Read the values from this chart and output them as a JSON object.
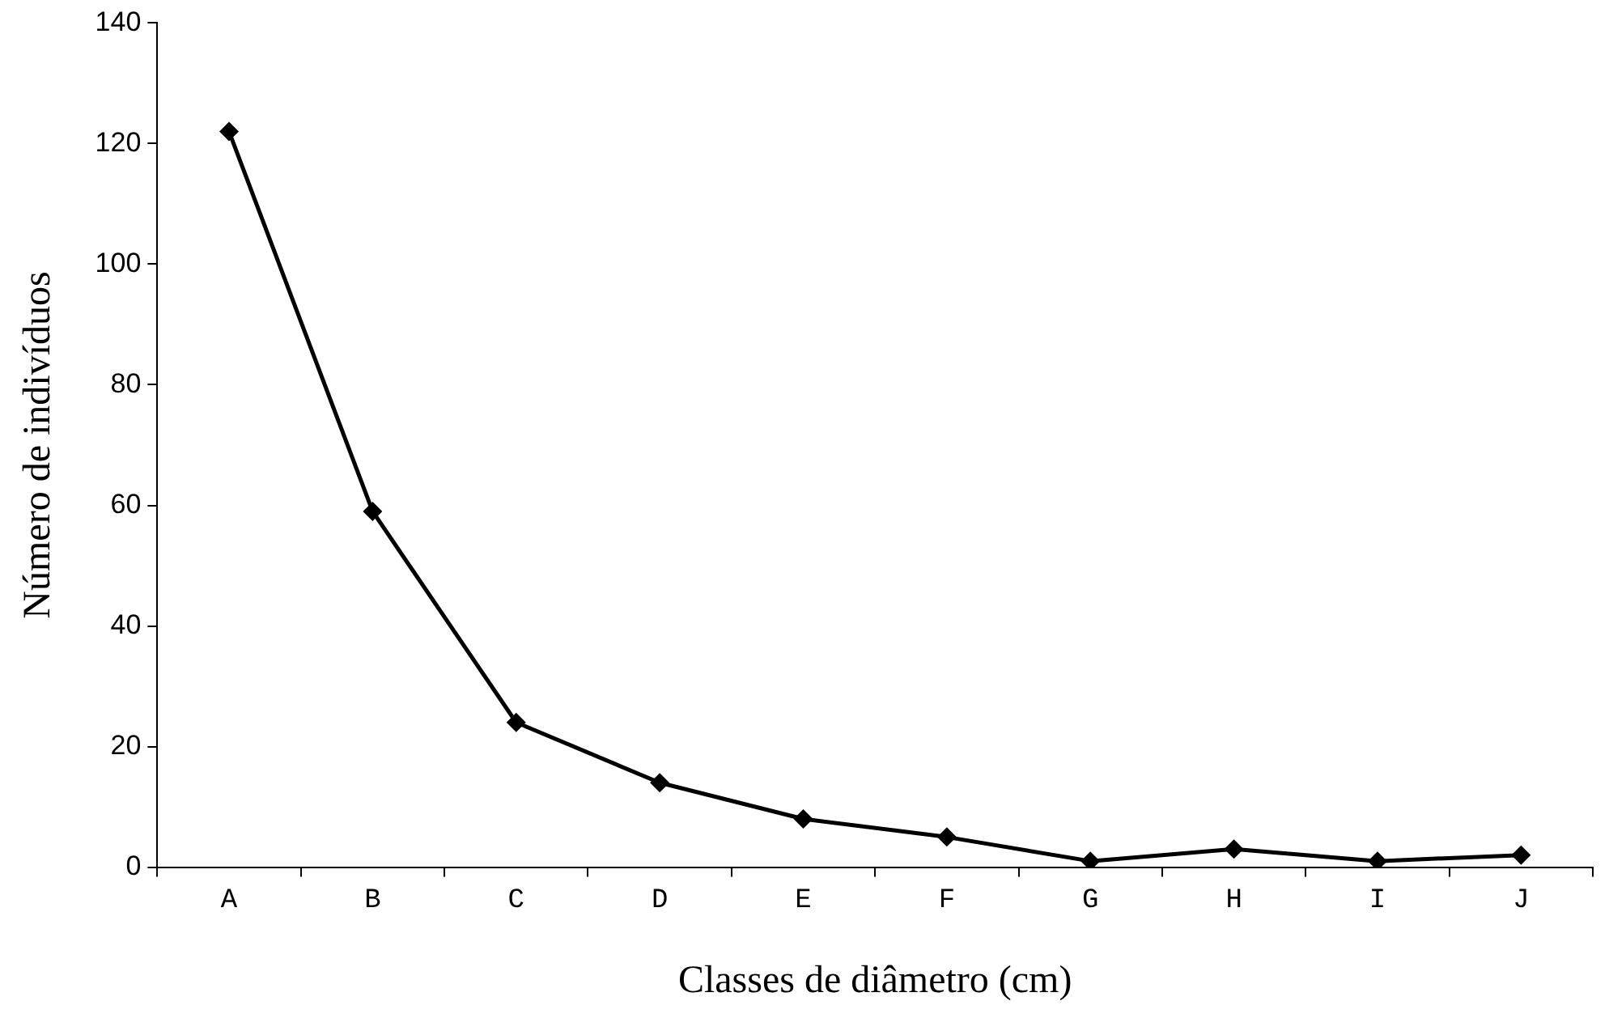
{
  "chart_data": {
    "type": "line",
    "xlabel": "Classes de diâmetro (cm)",
    "ylabel": "Número de indivíduos",
    "categories": [
      "A",
      "B",
      "C",
      "D",
      "E",
      "F",
      "G",
      "H",
      "I",
      "J"
    ],
    "series": [
      {
        "color": "#000000",
        "values": [
          122,
          59,
          24,
          14,
          8,
          5,
          1,
          3,
          1,
          2
        ]
      }
    ],
    "ylim": [
      0,
      140
    ],
    "yticks": [
      0,
      20,
      40,
      60,
      80,
      100,
      120,
      140
    ],
    "marker": "diamond",
    "line_style": "solid"
  }
}
